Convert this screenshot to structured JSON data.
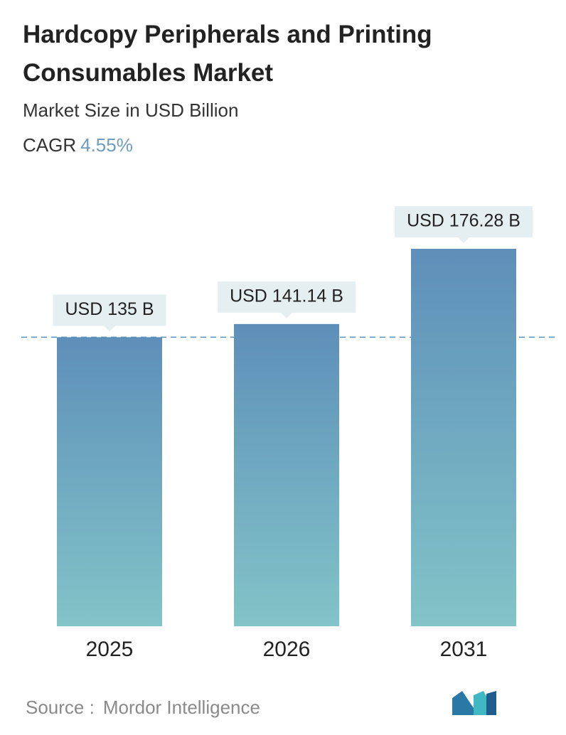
{
  "chart_data": {
    "type": "bar",
    "title": "Hardcopy Peripherals and Printing Consumables Market",
    "subtitle": "Market Size in USD Billion",
    "cagr_label": "CAGR",
    "cagr_value": "4.55%",
    "categories": [
      "2025",
      "2026",
      "2031"
    ],
    "values": [
      135,
      141.14,
      176.28
    ],
    "value_labels": [
      "USD 135 B",
      "USD 141.14 B",
      "USD 176.28 B"
    ],
    "gradient": [
      "#5e8fb9",
      "#82c4c8"
    ],
    "source_label": "Source :",
    "source": "Mordor Intelligence"
  }
}
